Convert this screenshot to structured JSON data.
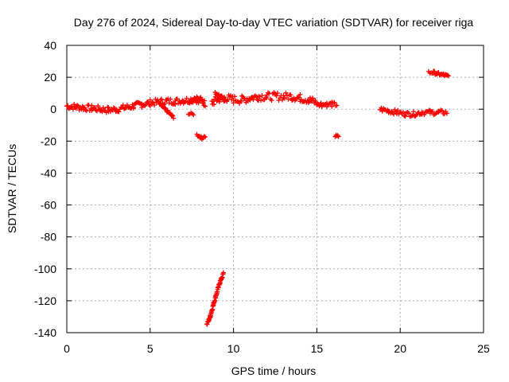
{
  "chart_data": {
    "type": "scatter",
    "title": "Day 276 of 2024, Sidereal Day-to-day VTEC variation (SDTVAR) for receiver riga",
    "xlabel": "GPS time / hours",
    "ylabel": "SDTVAR / TECUs",
    "xlim": [
      0,
      25
    ],
    "ylim": [
      -140,
      40
    ],
    "xticks": [
      0,
      5,
      10,
      15,
      20,
      25
    ],
    "yticks": [
      40,
      20,
      0,
      -20,
      -40,
      -60,
      -80,
      -100,
      -120,
      -140
    ],
    "grid": true,
    "marker": "+",
    "series_color": "#ff0000",
    "segments": [
      {
        "name": "main-band",
        "x": [
          0,
          0.5,
          1.0,
          1.5,
          2.0,
          2.5,
          3.0,
          3.5,
          4.0,
          4.5,
          5.0,
          5.5,
          6.0,
          6.5,
          7.0,
          7.5,
          8.0,
          8.3
        ],
        "y": [
          2,
          1.5,
          1,
          0.5,
          0,
          -0.5,
          0,
          1,
          2,
          3,
          4,
          4.5,
          5,
          5,
          5.5,
          6,
          6,
          3.5
        ],
        "thickness": 4
      },
      {
        "name": "spike-7.5",
        "x": [
          7.3,
          7.6,
          7.8,
          7.9
        ],
        "y": [
          5,
          6,
          7,
          4
        ],
        "thickness": 2
      },
      {
        "name": "dip-6",
        "x": [
          5.6,
          5.9,
          6.2,
          6.4
        ],
        "y": [
          3,
          0,
          -3,
          -5
        ],
        "thickness": 1.5
      },
      {
        "name": "isolated-7.5",
        "x": [
          7.3,
          7.6
        ],
        "y": [
          -3,
          -3
        ],
        "thickness": 1.5
      },
      {
        "name": "cluster-8",
        "x": [
          7.8,
          8.1,
          8.3
        ],
        "y": [
          -16,
          -18,
          -17
        ],
        "thickness": 1.5
      },
      {
        "name": "outlier-steep",
        "x": [
          8.4,
          8.6,
          8.8,
          9.0,
          9.2,
          9.4
        ],
        "y": [
          -135,
          -130,
          -122,
          -115,
          -108,
          -103
        ],
        "thickness": 2
      },
      {
        "name": "band-9-12",
        "x": [
          8.7,
          9.0,
          9.3,
          9.6,
          10.0,
          10.5,
          11.0,
          11.5,
          12.0,
          12.5,
          13.0,
          13.5,
          14.0,
          14.5,
          15.0
        ],
        "y": [
          4,
          6,
          7,
          7,
          6,
          6,
          7,
          8,
          8,
          8,
          8,
          8,
          7,
          6,
          4
        ],
        "thickness": 5
      },
      {
        "name": "peak-9",
        "x": [
          8.9,
          9.2,
          9.5
        ],
        "y": [
          10,
          8,
          5
        ],
        "thickness": 2
      },
      {
        "name": "band-15-16",
        "x": [
          15.0,
          15.3,
          15.6,
          15.9,
          16.2
        ],
        "y": [
          4,
          3,
          3,
          3,
          3
        ],
        "thickness": 3
      },
      {
        "name": "isolated-16",
        "x": [
          16.1,
          16.3
        ],
        "y": [
          -17,
          -17
        ],
        "thickness": 1.5
      },
      {
        "name": "band-19-23",
        "x": [
          18.8,
          19.3,
          19.8,
          20.3,
          20.8,
          21.3,
          21.8,
          22.3,
          22.8
        ],
        "y": [
          0,
          -1,
          -2,
          -3,
          -3,
          -2,
          -2,
          -2,
          -2
        ],
        "thickness": 3
      },
      {
        "name": "upper-22",
        "x": [
          21.7,
          22.0,
          22.3,
          22.6,
          22.9
        ],
        "y": [
          23,
          23,
          22,
          21.5,
          20.5
        ],
        "thickness": 2
      }
    ]
  }
}
